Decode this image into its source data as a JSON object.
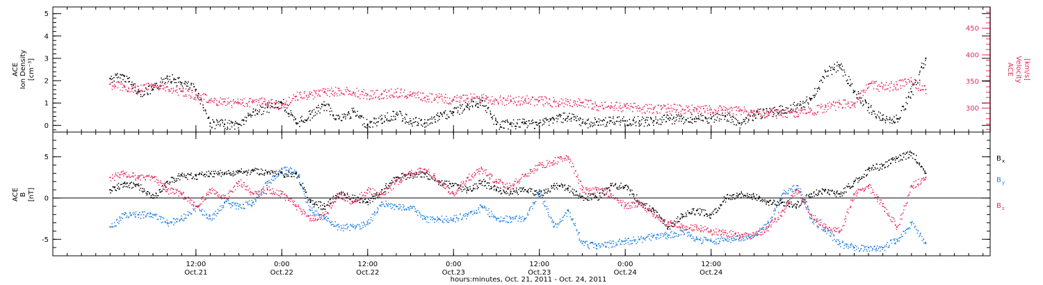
{
  "colors": {
    "black": "#000000",
    "red": "#e8285a",
    "blue": "#1e7fe0"
  },
  "footer": {
    "xlabel": "hours:minutes, Oct. 21, 2011 - Oct. 24, 2011"
  },
  "chart_data": [
    {
      "type": "scatter",
      "panel": "top",
      "left_axis": {
        "label_lines": [
          "ACE",
          "Ion Density",
          "[cm⁻³]"
        ],
        "range": [
          -0.3,
          5.3
        ],
        "ticks": [
          0,
          1,
          2,
          3,
          4,
          5
        ],
        "tick_labels": [
          "0",
          "1",
          "2",
          "3",
          "4",
          "5"
        ]
      },
      "right_axis": {
        "label_lines": [
          "ACE",
          "Velocity",
          "[km/s]"
        ],
        "range": [
          255,
          490
        ],
        "ticks": [
          300,
          350,
          400,
          450
        ],
        "tick_labels": [
          "300",
          "350",
          "400",
          "450"
        ]
      },
      "series": [
        {
          "axis": "left",
          "color_key": "black",
          "x": [
            0,
            2,
            4,
            6,
            8,
            10,
            12,
            14,
            16,
            18,
            20,
            22,
            24,
            26,
            28,
            30,
            32,
            34,
            36,
            38,
            40,
            42,
            44,
            46,
            48,
            50,
            52,
            54,
            56,
            58,
            60,
            62,
            64,
            66,
            68,
            70,
            72,
            74,
            76,
            78,
            80,
            82,
            84,
            86,
            88,
            90,
            92,
            94,
            96,
            98,
            100,
            102,
            104,
            106,
            108,
            110,
            112,
            114
          ],
          "values": [
            2.1,
            2.2,
            1.5,
            1.6,
            2.2,
            1.9,
            1.6,
            0.1,
            0.05,
            0.05,
            0.6,
            0.8,
            1.0,
            0.1,
            0.5,
            0.9,
            0.3,
            0.6,
            0.05,
            0.3,
            0.5,
            0.2,
            0.1,
            0.4,
            0.6,
            0.9,
            1.1,
            0.05,
            0.05,
            0.1,
            0.1,
            0.3,
            0.4,
            0.1,
            0.15,
            0.2,
            0.2,
            0.2,
            0.2,
            0.3,
            0.3,
            0.3,
            0.3,
            0.4,
            0.1,
            0.5,
            0.6,
            0.7,
            0.9,
            1.2,
            2.4,
            2.7,
            1.5,
            0.8,
            0.3,
            0.3,
            1.5,
            3.0
          ]
        },
        {
          "axis": "right",
          "color_key": "red",
          "x": [
            0,
            2,
            4,
            6,
            8,
            10,
            12,
            14,
            16,
            18,
            20,
            22,
            24,
            26,
            28,
            30,
            32,
            34,
            36,
            38,
            40,
            42,
            44,
            46,
            48,
            50,
            52,
            54,
            56,
            58,
            60,
            62,
            64,
            66,
            68,
            70,
            72,
            74,
            76,
            78,
            80,
            82,
            84,
            86,
            88,
            90,
            92,
            94,
            96,
            98,
            100,
            102,
            104,
            106,
            108,
            110,
            112,
            114
          ],
          "values": [
            345,
            340,
            335,
            342,
            340,
            332,
            325,
            315,
            312,
            310,
            313,
            310,
            305,
            322,
            326,
            331,
            333,
            330,
            325,
            327,
            330,
            325,
            320,
            320,
            315,
            318,
            320,
            315,
            315,
            315,
            314,
            312,
            312,
            310,
            305,
            304,
            303,
            300,
            300,
            300,
            298,
            298,
            297,
            296,
            295,
            294,
            292,
            290,
            292,
            296,
            302,
            308,
            308,
            345,
            340,
            344,
            350,
            335
          ]
        }
      ]
    },
    {
      "type": "scatter",
      "panel": "bottom",
      "left_axis": {
        "label_lines": [
          "ACE",
          "B",
          "[nT]"
        ],
        "range": [
          -7,
          8
        ],
        "ticks": [
          -5,
          0,
          5
        ],
        "tick_labels": [
          "-5",
          "0",
          "5"
        ]
      },
      "legend": [
        {
          "label": "B",
          "sub": "x",
          "color_key": "black"
        },
        {
          "label": "B",
          "sub": "y",
          "color_key": "blue"
        },
        {
          "label": "B",
          "sub": "z",
          "color_key": "red"
        }
      ],
      "series": [
        {
          "name": "Bx",
          "color_key": "black",
          "x": [
            0,
            2,
            4,
            6,
            8,
            10,
            12,
            14,
            16,
            18,
            20,
            22,
            24,
            26,
            28,
            30,
            32,
            34,
            36,
            38,
            40,
            42,
            44,
            46,
            48,
            50,
            52,
            54,
            56,
            58,
            60,
            62,
            64,
            66,
            68,
            70,
            72,
            74,
            76,
            78,
            80,
            82,
            84,
            86,
            88,
            90,
            92,
            94,
            96,
            98,
            100,
            102,
            104,
            106,
            108,
            110,
            112,
            114
          ],
          "values": [
            1.0,
            1.8,
            1.5,
            0.0,
            2.0,
            2.8,
            2.7,
            3.0,
            3.0,
            3.2,
            3.3,
            3.1,
            3.0,
            3.0,
            -0.5,
            -1.0,
            0.5,
            0.0,
            -0.5,
            1.0,
            2.5,
            2.8,
            3.0,
            2.0,
            1.5,
            1.0,
            2.0,
            1.0,
            0.8,
            1.0,
            0.5,
            1.5,
            1.2,
            0.2,
            0.1,
            1.5,
            1.5,
            -0.5,
            -1.5,
            -3.5,
            -2.0,
            -1.5,
            -2.0,
            0.0,
            0.5,
            0.2,
            -0.5,
            -0.5,
            -0.8,
            0.5,
            1.0,
            0.5,
            2.0,
            3.5,
            4.0,
            4.8,
            5.5,
            3.0
          ]
        },
        {
          "name": "By",
          "color_key": "blue",
          "x": [
            0,
            2,
            4,
            6,
            8,
            10,
            12,
            14,
            16,
            18,
            20,
            22,
            24,
            26,
            28,
            30,
            32,
            34,
            36,
            38,
            40,
            42,
            44,
            46,
            48,
            50,
            52,
            54,
            56,
            58,
            60,
            62,
            64,
            66,
            68,
            70,
            72,
            74,
            76,
            78,
            80,
            82,
            84,
            86,
            88,
            90,
            92,
            94,
            96,
            98,
            100,
            102,
            104,
            106,
            108,
            110,
            112,
            114
          ],
          "values": [
            -3.5,
            -2.0,
            -2.0,
            -2.0,
            -3.0,
            -2.5,
            -1.0,
            -2.5,
            -0.5,
            -1.0,
            -0.5,
            2.0,
            3.5,
            3.2,
            -1.5,
            -2.5,
            -3.5,
            -3.5,
            -3.0,
            -0.5,
            -1.0,
            -1.0,
            -2.5,
            -2.5,
            -2.5,
            -2.0,
            -1.0,
            -2.5,
            -2.5,
            -2.5,
            1.0,
            -3.5,
            -1.5,
            -5.5,
            -5.8,
            -5.5,
            -5.2,
            -5.0,
            -4.5,
            -4.5,
            -4.0,
            -5.0,
            -5.2,
            -5.0,
            -4.8,
            -4.5,
            -3.0,
            0.5,
            1.5,
            -2.5,
            -4.0,
            -5.5,
            -6.0,
            -6.0,
            -6.0,
            -5.0,
            -3.0,
            -5.5
          ]
        },
        {
          "name": "Bz",
          "color_key": "red",
          "x": [
            0,
            2,
            4,
            6,
            8,
            10,
            12,
            14,
            16,
            18,
            20,
            22,
            24,
            26,
            28,
            30,
            32,
            34,
            36,
            38,
            40,
            42,
            44,
            46,
            48,
            50,
            52,
            54,
            56,
            58,
            60,
            62,
            64,
            66,
            68,
            70,
            72,
            74,
            76,
            78,
            80,
            82,
            84,
            86,
            88,
            90,
            92,
            94,
            96,
            98,
            100,
            102,
            104,
            106,
            108,
            110,
            112,
            114
          ],
          "values": [
            2.5,
            3.0,
            2.5,
            2.5,
            1.0,
            0.5,
            -1.0,
            1.0,
            0.0,
            2.0,
            0.5,
            1.0,
            0.5,
            -1.0,
            -2.5,
            -2.0,
            0.5,
            -0.5,
            1.0,
            0.5,
            2.0,
            3.0,
            3.5,
            2.0,
            0.5,
            2.5,
            3.5,
            2.0,
            1.5,
            2.8,
            4.0,
            4.5,
            5.0,
            1.0,
            1.0,
            0.5,
            -1.0,
            -0.5,
            -2.0,
            -3.0,
            -3.5,
            -3.5,
            -4.0,
            -4.2,
            -4.5,
            -4.5,
            -3.5,
            -1.5,
            1.0,
            -2.0,
            -3.5,
            -4.0,
            0.5,
            1.5,
            -1.0,
            -3.5,
            1.5,
            2.5
          ]
        }
      ]
    }
  ],
  "x_axis": {
    "range_hours": [
      -8,
      123
    ],
    "ticks": [
      {
        "hours": 12,
        "label1": "12:00",
        "label2": "Oct.21"
      },
      {
        "hours": 24,
        "label1": "0:00",
        "label2": "Oct.22"
      },
      {
        "hours": 36,
        "label1": "12:00",
        "label2": "Oct.22"
      },
      {
        "hours": 48,
        "label1": "0:00",
        "label2": "Oct.23"
      },
      {
        "hours": 60,
        "label1": "12:00",
        "label2": "Oct.23"
      },
      {
        "hours": 72,
        "label1": "0:00",
        "label2": "Oct.24"
      },
      {
        "hours": 84,
        "label1": "12:00",
        "label2": "Oct.24"
      }
    ],
    "minor_step_hours": 2
  }
}
